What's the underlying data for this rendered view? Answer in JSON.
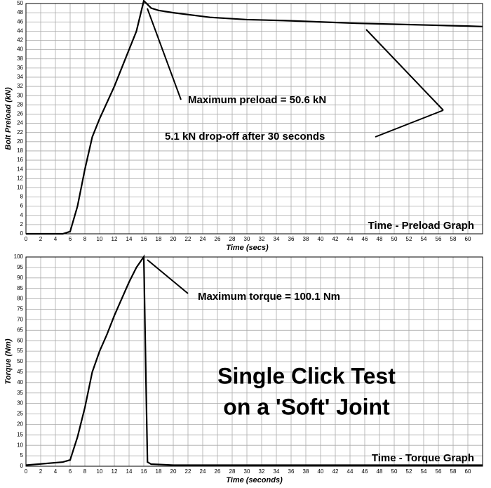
{
  "chart_data": [
    {
      "type": "line",
      "title": "Time - Preload Graph",
      "x_label": "Time (secs)",
      "y_label": "Bolt Preload (kN)",
      "annotations": [
        "Maximum preload = 50.6 kN",
        "5.1 kN drop-off after 30 seconds"
      ],
      "x": [
        0,
        5,
        6,
        7,
        8,
        9,
        10,
        11,
        12,
        13,
        14,
        15,
        16,
        17,
        18,
        20,
        25,
        30,
        35,
        40,
        45,
        50,
        55,
        60,
        62
      ],
      "values": [
        0,
        0,
        0.5,
        6,
        14,
        21,
        25,
        28.5,
        32,
        36,
        40,
        44,
        50.6,
        49,
        48.5,
        48,
        47,
        46.5,
        46.3,
        46,
        45.7,
        45.5,
        45.3,
        45.1,
        45
      ],
      "color": "#000000",
      "xlim": [
        0,
        62
      ],
      "xticks": [
        0,
        2,
        4,
        6,
        8,
        10,
        12,
        14,
        16,
        18,
        20,
        22,
        24,
        26,
        28,
        30,
        32,
        34,
        36,
        38,
        40,
        42,
        44,
        46,
        48,
        50,
        52,
        54,
        56,
        58,
        60
      ],
      "ylim": [
        0,
        50
      ],
      "yticks": [
        0,
        2,
        4,
        6,
        8,
        10,
        12,
        14,
        16,
        18,
        20,
        22,
        24,
        26,
        28,
        30,
        32,
        34,
        36,
        38,
        40,
        42,
        44,
        46,
        48,
        50
      ],
      "grid": true
    },
    {
      "type": "line",
      "title": "Time - Torque Graph",
      "x_label": "Time (seconds)",
      "y_label": "Torque (Nm)",
      "annotations": [
        "Maximum torque = 100.1 Nm",
        "Single Click Test",
        "on a 'Soft' Joint"
      ],
      "x": [
        0,
        5,
        6,
        7,
        8,
        9,
        10,
        11,
        12,
        13,
        14,
        15,
        16,
        16.3,
        16.5,
        17,
        20,
        62
      ],
      "values": [
        0.5,
        2,
        3,
        14,
        28,
        45,
        55,
        63,
        72,
        80,
        88,
        95,
        100.1,
        40,
        2,
        1,
        0.5,
        0.5
      ],
      "color": "#000000",
      "xlim": [
        0,
        62
      ],
      "xticks": [
        0,
        2,
        4,
        6,
        8,
        10,
        12,
        14,
        16,
        18,
        20,
        22,
        24,
        26,
        28,
        30,
        32,
        34,
        36,
        38,
        40,
        42,
        44,
        46,
        48,
        50,
        52,
        54,
        56,
        58,
        60
      ],
      "ylim": [
        0,
        100
      ],
      "yticks": [
        0,
        5,
        10,
        15,
        20,
        25,
        30,
        35,
        40,
        45,
        50,
        55,
        60,
        65,
        70,
        75,
        80,
        85,
        90,
        95,
        100
      ],
      "grid": true
    }
  ]
}
